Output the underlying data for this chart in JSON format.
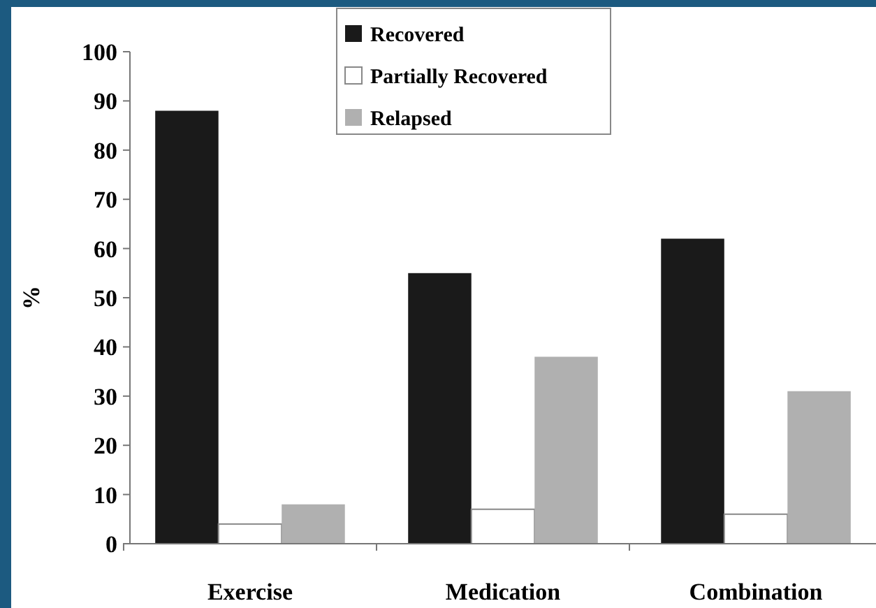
{
  "chart_data": {
    "type": "bar",
    "ylabel": "%",
    "categories": [
      "Exercise",
      "Medication",
      "Combination"
    ],
    "series": [
      {
        "name": "Recovered",
        "color": "#1a1a1a",
        "values": [
          88,
          55,
          62
        ]
      },
      {
        "name": "Partially Recovered",
        "color": "#ffffff",
        "values": [
          4,
          7,
          6
        ]
      },
      {
        "name": "Relapsed",
        "color": "#b0b0b0",
        "values": [
          8,
          38,
          31
        ]
      }
    ],
    "ylim": [
      0,
      100
    ],
    "yticks": [
      0,
      10,
      20,
      30,
      40,
      50,
      60,
      70,
      80,
      90,
      100
    ],
    "grid": false,
    "legend": "top"
  }
}
